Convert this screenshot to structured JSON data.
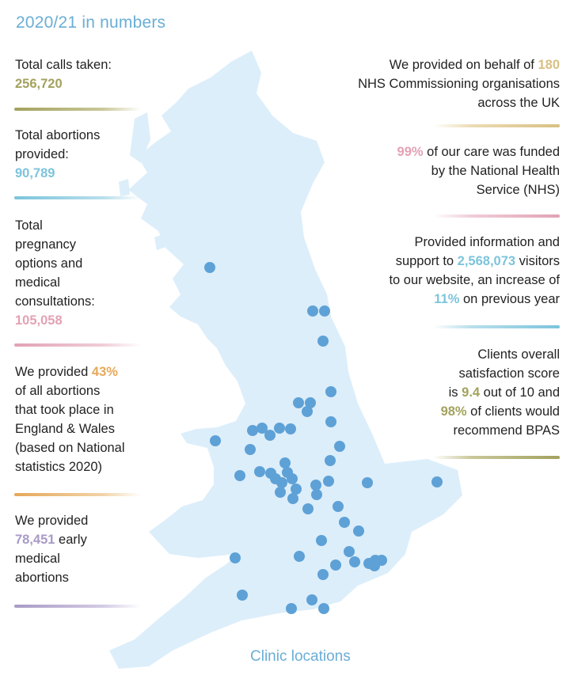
{
  "title": "2020/21 in numbers",
  "colors": {
    "olive": "#a3a25e",
    "blue": "#7cc4dc",
    "pink": "#e2a2b4",
    "orange": "#e6a85a",
    "purple": "#a99ac7",
    "gold": "#d8c084",
    "map_land": "#dceefa",
    "clinic_dot": "#5ea1d6",
    "caption": "#6aaed6"
  },
  "left_stats": {
    "calls": {
      "label": "Total calls taken:",
      "value": "256,720"
    },
    "abortions": {
      "label_1": "Total abortions",
      "label_2": "provided:",
      "value": "90,789"
    },
    "consultations": {
      "label_1": "Total",
      "label_2": "pregnancy",
      "label_3": "options and",
      "label_4": "medical",
      "label_5": "consultations:",
      "value": "105,058"
    },
    "share": {
      "prefix": "We provided ",
      "value": "43%",
      "line_2": "of all abortions",
      "line_3": "that took place in",
      "line_4": "England & Wales",
      "line_5": "(based on National",
      "line_6": "statistics 2020)"
    },
    "early": {
      "line_1": "We provided",
      "value": "78,451",
      "suffix": " early",
      "line_3": "medical",
      "line_4": "abortions"
    }
  },
  "right_stats": {
    "nhs_orgs": {
      "prefix": "We provided on behalf of ",
      "value": "180",
      "line_2": "NHS Commissioning organisations",
      "line_3": "across the UK"
    },
    "funding": {
      "value": "99%",
      "suffix": " of our care was funded",
      "line_2": "by the National Health",
      "line_3": "Service (NHS)"
    },
    "website": {
      "line_1": "Provided information and",
      "prefix": "support to ",
      "value": "2,568,073",
      "suffix": " visitors",
      "line_3": "to our website, an increase of",
      "value_2": "11%",
      "suffix_2": " on previous year"
    },
    "satisfaction": {
      "line_1": "Clients overall",
      "line_2": "satisfaction score",
      "prefix": "is ",
      "value": "9.4",
      "suffix": " out of 10 and",
      "value_2": "98%",
      "suffix_2": " of clients would",
      "line_5": "recommend BPAS"
    }
  },
  "map": {
    "caption": "Clinic locations"
  }
}
